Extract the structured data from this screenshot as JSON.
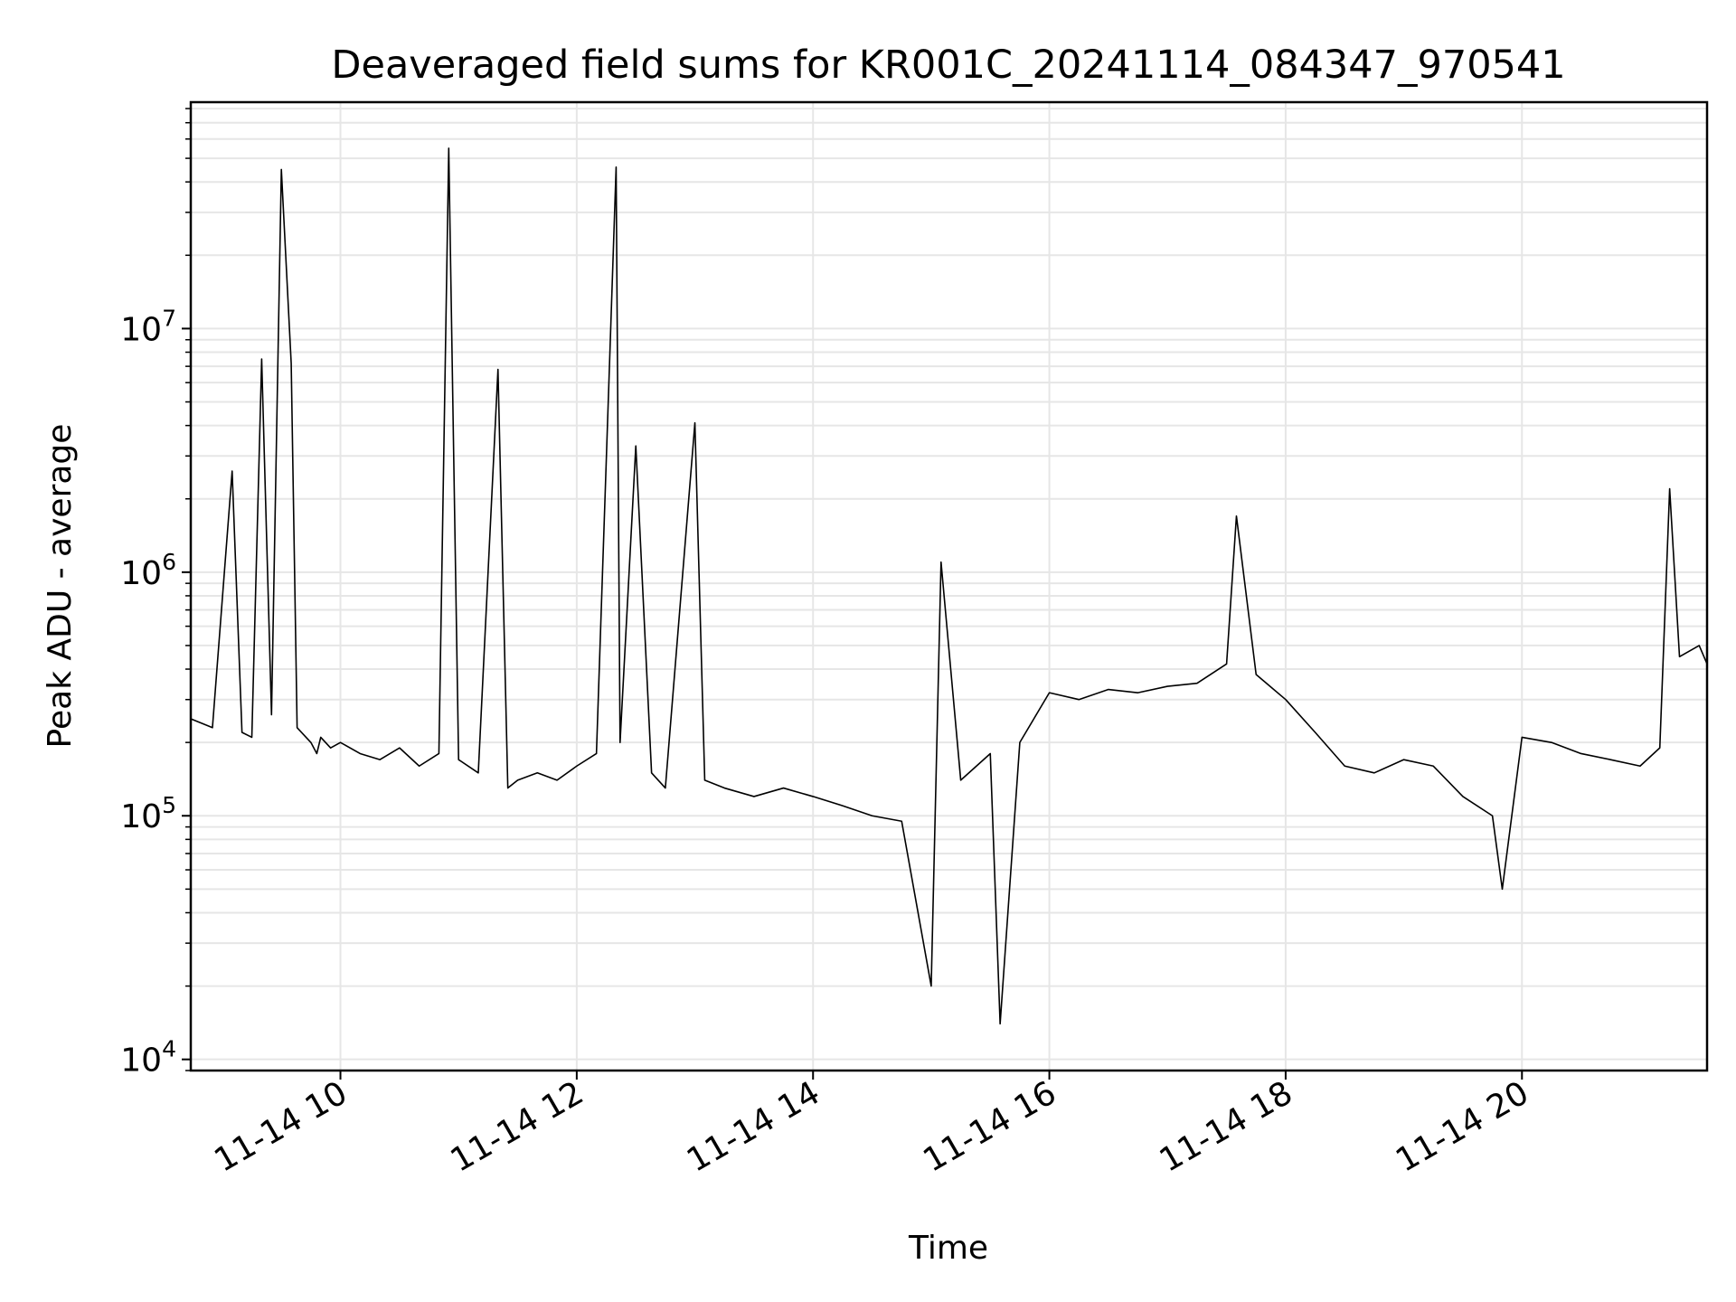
{
  "chart_data": {
    "type": "line",
    "title": "Deaveraged field sums for KR001C_20241114_084347_970541",
    "xlabel": "Time",
    "ylabel": "Peak ADU - average",
    "yscale": "log",
    "ylim": [
      9000,
      85000000
    ],
    "xlim": [
      "2024-11-14T08:44",
      "2024-11-14T21:34"
    ],
    "xticks": [
      {
        "value": "2024-11-14T10:00",
        "label": "11-14 10"
      },
      {
        "value": "2024-11-14T12:00",
        "label": "11-14 12"
      },
      {
        "value": "2024-11-14T14:00",
        "label": "11-14 14"
      },
      {
        "value": "2024-11-14T16:00",
        "label": "11-14 16"
      },
      {
        "value": "2024-11-14T18:00",
        "label": "11-14 18"
      },
      {
        "value": "2024-11-14T20:00",
        "label": "11-14 20"
      }
    ],
    "yticks": [
      {
        "value": 10000,
        "base": "10",
        "exp": "4"
      },
      {
        "value": 100000,
        "base": "10",
        "exp": "5"
      },
      {
        "value": 1000000,
        "base": "10",
        "exp": "6"
      },
      {
        "value": 10000000,
        "base": "10",
        "exp": "7"
      }
    ],
    "grid": true,
    "line_color": "#000000",
    "grid_color": "#e6e6e6",
    "series": [
      {
        "x": [
          "2024-11-14T08:44",
          "2024-11-14T08:55",
          "2024-11-14T09:05",
          "2024-11-14T09:10",
          "2024-11-14T09:15",
          "2024-11-14T09:20",
          "2024-11-14T09:25",
          "2024-11-14T09:30",
          "2024-11-14T09:35",
          "2024-11-14T09:38",
          "2024-11-14T09:45",
          "2024-11-14T09:48",
          "2024-11-14T09:50",
          "2024-11-14T09:55",
          "2024-11-14T10:00",
          "2024-11-14T10:10",
          "2024-11-14T10:20",
          "2024-11-14T10:30",
          "2024-11-14T10:40",
          "2024-11-14T10:50",
          "2024-11-14T10:55",
          "2024-11-14T11:00",
          "2024-11-14T11:10",
          "2024-11-14T11:20",
          "2024-11-14T11:25",
          "2024-11-14T11:30",
          "2024-11-14T11:40",
          "2024-11-14T11:50",
          "2024-11-14T12:00",
          "2024-11-14T12:10",
          "2024-11-14T12:20",
          "2024-11-14T12:22",
          "2024-11-14T12:30",
          "2024-11-14T12:38",
          "2024-11-14T12:45",
          "2024-11-14T13:00",
          "2024-11-14T13:05",
          "2024-11-14T13:15",
          "2024-11-14T13:30",
          "2024-11-14T13:45",
          "2024-11-14T14:00",
          "2024-11-14T14:15",
          "2024-11-14T14:30",
          "2024-11-14T14:45",
          "2024-11-14T15:00",
          "2024-11-14T15:05",
          "2024-11-14T15:15",
          "2024-11-14T15:30",
          "2024-11-14T15:35",
          "2024-11-14T15:45",
          "2024-11-14T16:00",
          "2024-11-14T16:15",
          "2024-11-14T16:30",
          "2024-11-14T16:45",
          "2024-11-14T17:00",
          "2024-11-14T17:15",
          "2024-11-14T17:30",
          "2024-11-14T17:35",
          "2024-11-14T17:45",
          "2024-11-14T18:00",
          "2024-11-14T18:15",
          "2024-11-14T18:30",
          "2024-11-14T18:45",
          "2024-11-14T19:00",
          "2024-11-14T19:15",
          "2024-11-14T19:30",
          "2024-11-14T19:45",
          "2024-11-14T19:50",
          "2024-11-14T20:00",
          "2024-11-14T20:15",
          "2024-11-14T20:30",
          "2024-11-14T20:45",
          "2024-11-14T21:00",
          "2024-11-14T21:10",
          "2024-11-14T21:15",
          "2024-11-14T21:20",
          "2024-11-14T21:30",
          "2024-11-14T21:34"
        ],
        "y": [
          250000,
          230000,
          2600000,
          220000,
          210000,
          7500000,
          260000,
          45000000,
          7200000,
          230000,
          200000,
          180000,
          210000,
          190000,
          200000,
          180000,
          170000,
          190000,
          160000,
          180000,
          55000000,
          170000,
          150000,
          6800000,
          130000,
          140000,
          150000,
          140000,
          160000,
          180000,
          46000000,
          200000,
          3300000,
          150000,
          130000,
          4100000,
          140000,
          130000,
          120000,
          130000,
          120000,
          110000,
          100000,
          95000,
          20000,
          1100000,
          140000,
          180000,
          14000,
          200000,
          320000,
          300000,
          330000,
          320000,
          340000,
          350000,
          420000,
          1700000,
          380000,
          300000,
          220000,
          160000,
          150000,
          170000,
          160000,
          120000,
          100000,
          50000,
          210000,
          200000,
          180000,
          170000,
          160000,
          190000,
          2200000,
          450000,
          500000,
          420000
        ]
      }
    ]
  }
}
